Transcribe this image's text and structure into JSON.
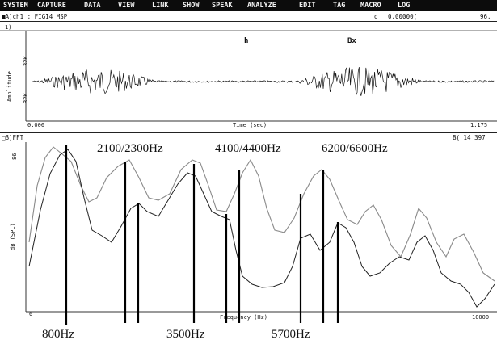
{
  "menu": [
    "SYSTEM",
    "CAPTURE",
    "DATA",
    "VIEW",
    "LINK",
    "SHOW",
    "SPEAK",
    "ANALYZE",
    "EDIT",
    "TAG",
    "MACRO",
    "LOG"
  ],
  "top_panel": {
    "channel": "■A)ch1 : FIG14 MSP",
    "marker_a": "o",
    "value": "0.00000(",
    "value_right": "96.",
    "index": "1)",
    "ylabel": "Amplitude",
    "ytick_top": "32K",
    "ytick_bottom": "32K",
    "segment_labels": [
      "h",
      "Bx"
    ],
    "x_start": "0.000",
    "x_label": "Time (sec)",
    "x_end": "1.175"
  },
  "fft_panel": {
    "header": "□B)FFT",
    "header_right": "B( 14 397",
    "ytick_top": "86",
    "ylabel": "dB (SPL)",
    "x_start": "0",
    "x_label": "Frequency (Hz)",
    "x_end": "10000"
  },
  "annotations_top": [
    "2100/2300Hz",
    "4100/4400Hz",
    "6200/6600Hz"
  ],
  "annotations_bottom": [
    "800Hz",
    "3500Hz",
    "5700Hz"
  ]
}
